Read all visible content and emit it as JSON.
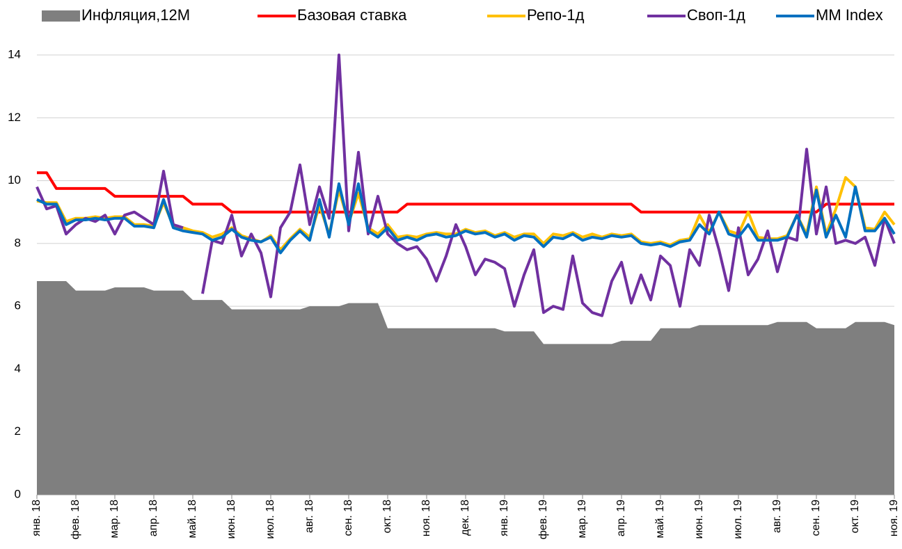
{
  "chart_data": {
    "type": "line",
    "categories": [
      "янв. 18",
      null,
      null,
      null,
      "фев. 18",
      null,
      null,
      null,
      "мар. 18",
      null,
      null,
      null,
      "апр. 18",
      null,
      null,
      null,
      "май. 18",
      null,
      null,
      null,
      "июн. 18",
      null,
      null,
      null,
      "июл. 18",
      null,
      null,
      null,
      "авг. 18",
      null,
      null,
      null,
      "сен. 18",
      null,
      null,
      null,
      "окт. 18",
      null,
      null,
      null,
      "ноя. 18",
      null,
      null,
      null,
      "дек. 18",
      null,
      null,
      null,
      "янв. 19",
      null,
      null,
      null,
      "фев. 19",
      null,
      null,
      null,
      "мар. 19",
      null,
      null,
      null,
      "апр. 19",
      null,
      null,
      null,
      "май. 19",
      null,
      null,
      null,
      "июн. 19",
      null,
      null,
      null,
      "июл. 19",
      null,
      null,
      null,
      "авг. 19",
      null,
      null,
      null,
      "сен. 19",
      null,
      null,
      null,
      "окт. 19",
      null,
      null,
      null,
      "ноя. 19"
    ],
    "series": [
      {
        "name": "Инфляция,12М",
        "kind": "area",
        "color": "#7f7f7f",
        "values": [
          6.8,
          6.8,
          6.8,
          6.8,
          6.5,
          6.5,
          6.5,
          6.5,
          6.6,
          6.6,
          6.6,
          6.6,
          6.5,
          6.5,
          6.5,
          6.5,
          6.2,
          6.2,
          6.2,
          6.2,
          5.9,
          5.9,
          5.9,
          5.9,
          5.9,
          5.9,
          5.9,
          5.9,
          6.0,
          6.0,
          6.0,
          6.0,
          6.1,
          6.1,
          6.1,
          6.1,
          5.3,
          5.3,
          5.3,
          5.3,
          5.3,
          5.3,
          5.3,
          5.3,
          5.3,
          5.3,
          5.3,
          5.3,
          5.2,
          5.2,
          5.2,
          5.2,
          4.8,
          4.8,
          4.8,
          4.8,
          4.8,
          4.8,
          4.8,
          4.8,
          4.9,
          4.9,
          4.9,
          4.9,
          5.3,
          5.3,
          5.3,
          5.3,
          5.4,
          5.4,
          5.4,
          5.4,
          5.4,
          5.4,
          5.4,
          5.4,
          5.5,
          5.5,
          5.5,
          5.5,
          5.3,
          5.3,
          5.3,
          5.3,
          5.5,
          5.5,
          5.5,
          5.5,
          5.4
        ]
      },
      {
        "name": "Базовая ставка",
        "kind": "line",
        "color": "#ff0000",
        "values": [
          10.25,
          10.25,
          9.75,
          9.75,
          9.75,
          9.75,
          9.75,
          9.75,
          9.5,
          9.5,
          9.5,
          9.5,
          9.5,
          9.5,
          9.5,
          9.5,
          9.25,
          9.25,
          9.25,
          9.25,
          9.0,
          9.0,
          9.0,
          9.0,
          9.0,
          9.0,
          9.0,
          9.0,
          9.0,
          9.0,
          9.0,
          9.0,
          9.0,
          9.0,
          9.0,
          9.0,
          9.0,
          9.0,
          9.25,
          9.25,
          9.25,
          9.25,
          9.25,
          9.25,
          9.25,
          9.25,
          9.25,
          9.25,
          9.25,
          9.25,
          9.25,
          9.25,
          9.25,
          9.25,
          9.25,
          9.25,
          9.25,
          9.25,
          9.25,
          9.25,
          9.25,
          9.25,
          9.0,
          9.0,
          9.0,
          9.0,
          9.0,
          9.0,
          9.0,
          9.0,
          9.0,
          9.0,
          9.0,
          9.0,
          9.0,
          9.0,
          9.0,
          9.0,
          9.0,
          9.0,
          9.0,
          9.25,
          9.25,
          9.25,
          9.25,
          9.25,
          9.25,
          9.25,
          9.25
        ]
      },
      {
        "name": "Репо-1д",
        "kind": "line",
        "color": "#ffc000",
        "values": [
          9.35,
          9.3,
          9.3,
          8.7,
          8.8,
          8.8,
          8.85,
          8.8,
          8.85,
          8.85,
          8.6,
          8.6,
          8.55,
          9.3,
          8.55,
          8.5,
          8.4,
          8.35,
          8.2,
          8.3,
          8.5,
          8.25,
          8.15,
          8.05,
          8.25,
          7.8,
          8.15,
          8.45,
          8.2,
          9.2,
          8.3,
          9.7,
          8.65,
          9.6,
          8.5,
          8.3,
          8.6,
          8.2,
          8.25,
          8.2,
          8.3,
          8.35,
          8.3,
          8.3,
          8.45,
          8.35,
          8.4,
          8.25,
          8.35,
          8.2,
          8.3,
          8.3,
          8.0,
          8.3,
          8.25,
          8.35,
          8.2,
          8.3,
          8.2,
          8.3,
          8.25,
          8.3,
          8.05,
          8.0,
          8.05,
          7.95,
          8.1,
          8.15,
          8.9,
          8.35,
          9.0,
          8.4,
          8.3,
          9.0,
          8.2,
          8.15,
          8.15,
          8.25,
          8.9,
          8.3,
          9.8,
          8.3,
          9.1,
          10.1,
          9.8,
          8.5,
          8.45,
          9.0,
          8.6
        ]
      },
      {
        "name": "Своп-1д",
        "kind": "line",
        "color": "#7030a0",
        "values": [
          9.8,
          9.1,
          9.2,
          8.3,
          8.6,
          8.8,
          8.7,
          8.9,
          8.3,
          8.9,
          9.0,
          8.8,
          8.6,
          10.3,
          8.6,
          8.5,
          null,
          6.4,
          8.1,
          8.0,
          8.9,
          7.6,
          8.3,
          7.7,
          6.3,
          8.5,
          9.0,
          10.5,
          8.6,
          9.8,
          8.8,
          14.0,
          8.4,
          10.9,
          8.3,
          9.5,
          8.3,
          8.0,
          7.8,
          7.9,
          7.5,
          6.8,
          7.6,
          8.6,
          7.9,
          7.0,
          7.5,
          7.4,
          7.2,
          6.0,
          7.0,
          7.8,
          5.8,
          6.0,
          5.9,
          7.6,
          6.1,
          5.8,
          5.7,
          6.8,
          7.4,
          6.1,
          7.0,
          6.2,
          7.6,
          7.3,
          6.0,
          7.8,
          7.3,
          8.9,
          7.8,
          6.5,
          8.5,
          7.0,
          7.5,
          8.4,
          7.1,
          8.2,
          8.1,
          11.0,
          8.3,
          9.8,
          8.0,
          8.1,
          8.0,
          8.2,
          7.3,
          8.8,
          8.0
        ]
      },
      {
        "name": "MM Index",
        "kind": "line",
        "color": "#0070c0",
        "values": [
          9.4,
          9.25,
          9.25,
          8.6,
          8.75,
          8.75,
          8.8,
          8.75,
          8.8,
          8.8,
          8.55,
          8.55,
          8.5,
          9.4,
          8.5,
          8.4,
          8.35,
          8.3,
          8.1,
          8.2,
          8.45,
          8.2,
          8.1,
          8.05,
          8.2,
          7.7,
          8.1,
          8.4,
          8.1,
          9.4,
          8.2,
          9.9,
          8.6,
          9.9,
          8.4,
          8.2,
          8.5,
          8.1,
          8.2,
          8.1,
          8.25,
          8.3,
          8.2,
          8.25,
          8.4,
          8.3,
          8.35,
          8.2,
          8.3,
          8.1,
          8.25,
          8.2,
          7.9,
          8.2,
          8.15,
          8.3,
          8.1,
          8.2,
          8.15,
          8.25,
          8.2,
          8.25,
          8.0,
          7.95,
          8.0,
          7.9,
          8.05,
          8.1,
          8.6,
          8.3,
          9.0,
          8.3,
          8.2,
          8.6,
          8.1,
          8.1,
          8.1,
          8.2,
          8.9,
          8.2,
          9.7,
          8.2,
          8.9,
          8.2,
          9.8,
          8.4,
          8.4,
          8.8,
          8.3
        ]
      }
    ],
    "ylim": [
      0,
      14
    ],
    "yticks": [
      0,
      2,
      4,
      6,
      8,
      10,
      12,
      14
    ],
    "grid": true
  }
}
